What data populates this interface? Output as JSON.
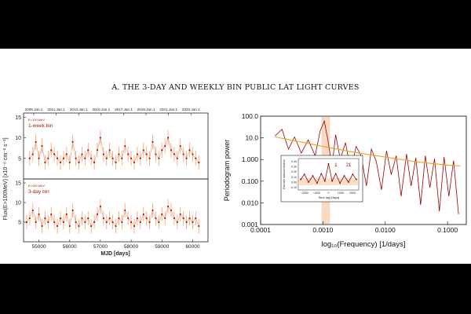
{
  "heading": "A. THE 3-DAY AND WEEKLY BIN PUBLIC LAT LIGHT CURVES",
  "colors": {
    "points": "#b01800",
    "errorbars": "#f2a07a",
    "model": "#f0a020",
    "trend": "#9a0000",
    "band": "#f7c9a8"
  },
  "chart_data": [
    {
      "type": "scatter",
      "panel": "left-top",
      "top_axis_ticks": [
        "2009.Jan.1",
        "2011.Jan.1",
        "2013.Jan.1",
        "2015.Jan.1",
        "2017.Jan.1",
        "2019.Jan.1",
        "2021.Jan.1",
        "2023.Jan.1"
      ],
      "top_axis_mjd": [
        54832,
        55562,
        56293,
        57023,
        57754,
        58484,
        59215,
        59945
      ],
      "x_range": [
        54500,
        60500
      ],
      "y_range": [
        0,
        16
      ],
      "yticks": [
        5,
        10,
        15
      ],
      "legend_small": "E>100 MeV",
      "legend_label": "1-week bin",
      "points": [
        {
          "x": 54700,
          "y": 5
        },
        {
          "x": 54800,
          "y": 6
        },
        {
          "x": 54900,
          "y": 9
        },
        {
          "x": 55000,
          "y": 5
        },
        {
          "x": 55100,
          "y": 8
        },
        {
          "x": 55200,
          "y": 4
        },
        {
          "x": 55300,
          "y": 5
        },
        {
          "x": 55400,
          "y": 7
        },
        {
          "x": 55500,
          "y": 6
        },
        {
          "x": 55600,
          "y": 5
        },
        {
          "x": 55700,
          "y": 4
        },
        {
          "x": 55800,
          "y": 5
        },
        {
          "x": 55900,
          "y": 6
        },
        {
          "x": 56000,
          "y": 4
        },
        {
          "x": 56100,
          "y": 9
        },
        {
          "x": 56200,
          "y": 5
        },
        {
          "x": 56300,
          "y": 4
        },
        {
          "x": 56400,
          "y": 6
        },
        {
          "x": 56500,
          "y": 5
        },
        {
          "x": 56600,
          "y": 7
        },
        {
          "x": 56700,
          "y": 5
        },
        {
          "x": 56800,
          "y": 4
        },
        {
          "x": 56900,
          "y": 7
        },
        {
          "x": 57000,
          "y": 10
        },
        {
          "x": 57100,
          "y": 6
        },
        {
          "x": 57200,
          "y": 5
        },
        {
          "x": 57300,
          "y": 7
        },
        {
          "x": 57400,
          "y": 5
        },
        {
          "x": 57500,
          "y": 4
        },
        {
          "x": 57600,
          "y": 6
        },
        {
          "x": 57700,
          "y": 5
        },
        {
          "x": 57800,
          "y": 8
        },
        {
          "x": 57900,
          "y": 6
        },
        {
          "x": 58000,
          "y": 5
        },
        {
          "x": 58100,
          "y": 4
        },
        {
          "x": 58200,
          "y": 6
        },
        {
          "x": 58300,
          "y": 5
        },
        {
          "x": 58400,
          "y": 7
        },
        {
          "x": 58500,
          "y": 6
        },
        {
          "x": 58600,
          "y": 5
        },
        {
          "x": 58700,
          "y": 9
        },
        {
          "x": 58800,
          "y": 6
        },
        {
          "x": 58900,
          "y": 5
        },
        {
          "x": 59000,
          "y": 7
        },
        {
          "x": 59100,
          "y": 8
        },
        {
          "x": 59200,
          "y": 10
        },
        {
          "x": 59300,
          "y": 7
        },
        {
          "x": 59400,
          "y": 6
        },
        {
          "x": 59500,
          "y": 5
        },
        {
          "x": 59600,
          "y": 8
        },
        {
          "x": 59700,
          "y": 6
        },
        {
          "x": 59800,
          "y": 5
        },
        {
          "x": 59900,
          "y": 7
        },
        {
          "x": 60000,
          "y": 6
        },
        {
          "x": 60100,
          "y": 5
        },
        {
          "x": 60200,
          "y": 4
        }
      ]
    },
    {
      "type": "scatter",
      "panel": "left-bottom",
      "x_range": [
        54500,
        60500
      ],
      "y_range": [
        0,
        16
      ],
      "yticks": [
        5,
        10,
        15
      ],
      "xticks": [
        55000,
        56000,
        57000,
        58000,
        59000,
        60000
      ],
      "xticklabels": [
        "55000",
        "56000",
        "57000",
        "58000",
        "59000",
        "60000"
      ],
      "xlabel": "MJD [days]",
      "ylabel_shared": "Flux(E>100MeV) [x10⁻⁸ cm⁻² s⁻¹]",
      "legend_small": "E>100 MeV",
      "legend_label": "3-day bin",
      "points": [
        {
          "x": 54600,
          "y": 5
        },
        {
          "x": 54700,
          "y": 6
        },
        {
          "x": 54800,
          "y": 8
        },
        {
          "x": 54900,
          "y": 5
        },
        {
          "x": 55000,
          "y": 7
        },
        {
          "x": 55100,
          "y": 4
        },
        {
          "x": 55200,
          "y": 6
        },
        {
          "x": 55300,
          "y": 5
        },
        {
          "x": 55400,
          "y": 7
        },
        {
          "x": 55500,
          "y": 5
        },
        {
          "x": 55600,
          "y": 4
        },
        {
          "x": 55700,
          "y": 6
        },
        {
          "x": 55800,
          "y": 5
        },
        {
          "x": 55900,
          "y": 7
        },
        {
          "x": 56000,
          "y": 4
        },
        {
          "x": 56100,
          "y": 8
        },
        {
          "x": 56200,
          "y": 5
        },
        {
          "x": 56300,
          "y": 4
        },
        {
          "x": 56400,
          "y": 6
        },
        {
          "x": 56500,
          "y": 5
        },
        {
          "x": 56600,
          "y": 6
        },
        {
          "x": 56700,
          "y": 4
        },
        {
          "x": 56800,
          "y": 5
        },
        {
          "x": 56900,
          "y": 7
        },
        {
          "x": 57000,
          "y": 9
        },
        {
          "x": 57100,
          "y": 6
        },
        {
          "x": 57200,
          "y": 5
        },
        {
          "x": 57300,
          "y": 6
        },
        {
          "x": 57400,
          "y": 5
        },
        {
          "x": 57500,
          "y": 4
        },
        {
          "x": 57600,
          "y": 6
        },
        {
          "x": 57700,
          "y": 5
        },
        {
          "x": 57800,
          "y": 8
        },
        {
          "x": 57900,
          "y": 6
        },
        {
          "x": 58000,
          "y": 5
        },
        {
          "x": 58100,
          "y": 4
        },
        {
          "x": 58200,
          "y": 6
        },
        {
          "x": 58300,
          "y": 5
        },
        {
          "x": 58400,
          "y": 7
        },
        {
          "x": 58500,
          "y": 6
        },
        {
          "x": 58600,
          "y": 5
        },
        {
          "x": 58700,
          "y": 8
        },
        {
          "x": 58800,
          "y": 6
        },
        {
          "x": 58900,
          "y": 5
        },
        {
          "x": 59000,
          "y": 7
        },
        {
          "x": 59100,
          "y": 6
        },
        {
          "x": 59200,
          "y": 9
        },
        {
          "x": 59300,
          "y": 8
        },
        {
          "x": 59400,
          "y": 6
        },
        {
          "x": 59500,
          "y": 5
        },
        {
          "x": 59600,
          "y": 7
        },
        {
          "x": 59700,
          "y": 6
        },
        {
          "x": 59800,
          "y": 5
        },
        {
          "x": 59900,
          "y": 6
        },
        {
          "x": 60000,
          "y": 5
        },
        {
          "x": 60100,
          "y": 6
        },
        {
          "x": 60200,
          "y": 4
        }
      ]
    },
    {
      "type": "line",
      "panel": "right",
      "xscale": "log",
      "yscale": "log",
      "x_range": [
        0.0001,
        0.2
      ],
      "y_range": [
        0.001,
        100
      ],
      "xticks": [
        0.0001,
        0.001,
        0.01,
        0.1
      ],
      "xticklabels": [
        "0.0001",
        "0.0010",
        "0.0100",
        "0.1000"
      ],
      "yticks": [
        0.001,
        0.01,
        0.1,
        1,
        10,
        100
      ],
      "yticklabels": [
        "0.001",
        "0.010",
        "0.100",
        "1.000",
        "10.0",
        "100.0"
      ],
      "xlabel": "log₁₀(Frequency) [1/days]",
      "ylabel": "Periodogram power",
      "model": {
        "x": [
          0.00017,
          0.0005,
          0.001,
          0.003,
          0.01,
          0.03,
          0.1,
          0.16
        ],
        "y": [
          11,
          6,
          4,
          2.2,
          1.3,
          0.8,
          0.55,
          0.5
        ]
      },
      "periodogram": {
        "x": [
          0.00017,
          0.00022,
          0.00028,
          0.00035,
          0.00045,
          0.00058,
          0.00075,
          0.0009,
          0.00105,
          0.0012,
          0.0014,
          0.0016,
          0.0019,
          0.0023,
          0.0028,
          0.0034,
          0.0041,
          0.005,
          0.006,
          0.0072,
          0.0087,
          0.0105,
          0.0125,
          0.015,
          0.018,
          0.022,
          0.026,
          0.031,
          0.037,
          0.044,
          0.052,
          0.062,
          0.074,
          0.088,
          0.105,
          0.125,
          0.15
        ],
        "y": [
          12,
          25,
          3,
          11,
          2,
          8,
          1.5,
          20,
          60,
          8,
          0.5,
          14,
          1,
          6,
          0.3,
          4,
          1.5,
          0.06,
          3,
          0.8,
          0.04,
          2.5,
          0.2,
          1.5,
          0.02,
          1.8,
          0.06,
          1.2,
          0.008,
          1.5,
          0.05,
          1.1,
          0.004,
          1.3,
          0.02,
          0.9,
          0.003
        ]
      },
      "inset": {
        "type": "line",
        "xlabel": "Time lag [days]",
        "ylabel": "Discrete autocorrelation",
        "xticks": [
          -2000,
          -1000,
          0,
          1000,
          2000
        ],
        "xticklabels": [
          "−2000",
          "−1000",
          "0",
          "1000",
          "2000"
        ],
        "yticks": [
          -0.1,
          0.0,
          0.1,
          0.2,
          0.3,
          0.4
        ],
        "yticklabels": [
          "-0.10",
          "0.00",
          "0.10",
          "0.20",
          "0.30",
          "0.40"
        ],
        "x_range": [
          -2500,
          2500
        ],
        "y_range": [
          -0.15,
          0.45
        ],
        "annotations": [
          "1",
          "2",
          "1"
        ],
        "x": [
          -2300,
          -2000,
          -1650,
          -1300,
          -950,
          -600,
          -300,
          0,
          300,
          600,
          950,
          1300,
          1650,
          2000,
          2300
        ],
        "y": [
          0.05,
          0.15,
          0.0,
          0.12,
          -0.02,
          0.16,
          0.02,
          0.35,
          0.02,
          0.16,
          -0.02,
          0.12,
          0.0,
          0.15,
          0.05
        ]
      }
    }
  ]
}
